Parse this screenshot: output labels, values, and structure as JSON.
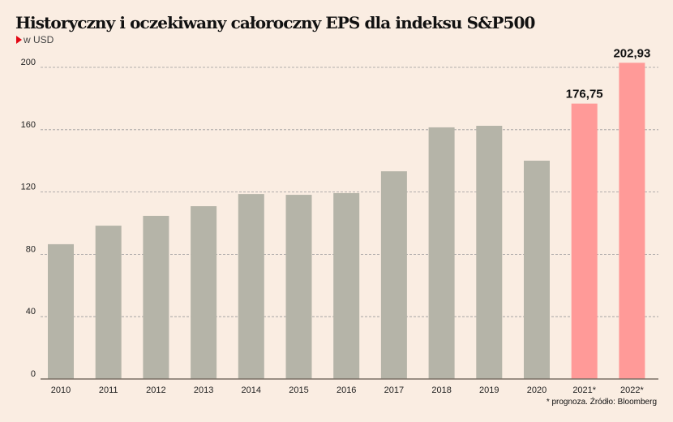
{
  "chart_data": {
    "type": "bar",
    "title": "Historyczny i oczekiwany całoroczny EPS dla indeksu S&P500",
    "subtitle": "w USD",
    "note": "* prognoza. Źródło: Bloomberg",
    "categories": [
      "2010",
      "2011",
      "2012",
      "2013",
      "2014",
      "2015",
      "2016",
      "2017",
      "2018",
      "2019",
      "2020",
      "2021*",
      "2022*"
    ],
    "values": [
      86.5,
      98.4,
      104.7,
      110.9,
      118.7,
      118.2,
      119.3,
      133.3,
      161.5,
      162.5,
      140.1,
      176.75,
      202.93
    ],
    "data_labels": {
      "11": "176,75",
      "12": "202,93"
    },
    "forecast": [
      false,
      false,
      false,
      false,
      false,
      false,
      false,
      false,
      false,
      false,
      false,
      true,
      true
    ],
    "ylim": [
      0,
      200
    ],
    "yticks": [
      0,
      40,
      80,
      120,
      160,
      200
    ],
    "grid": true,
    "colors": {
      "historical": "#b5b4a8",
      "forecast": "#ff9a98",
      "background": "#faede2",
      "accent": "#e30613"
    }
  }
}
